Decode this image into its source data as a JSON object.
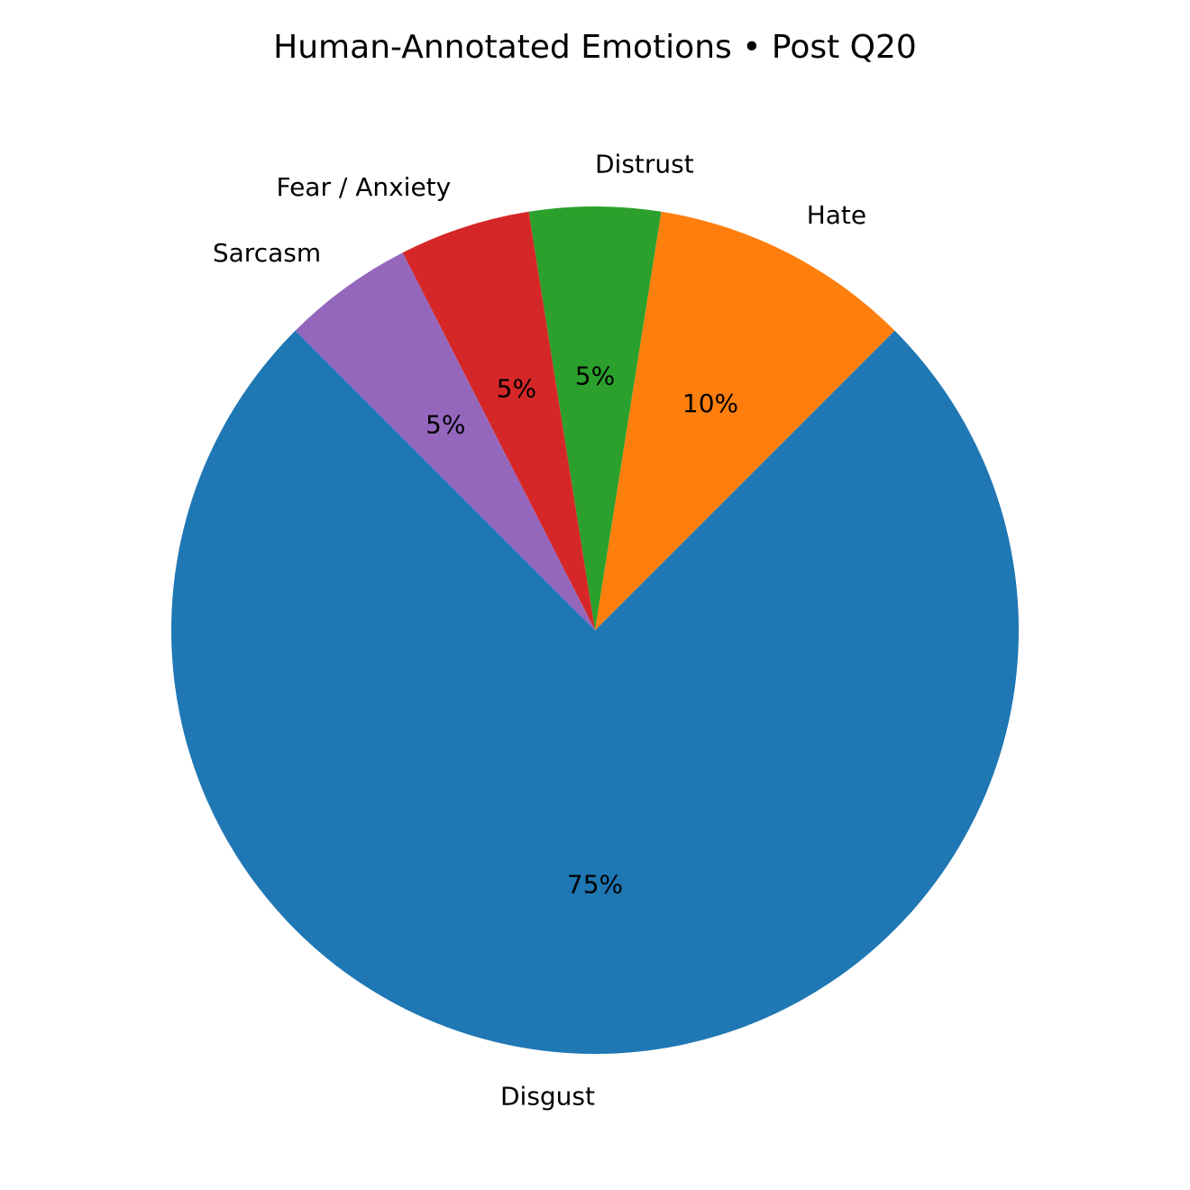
{
  "chart_data": {
    "type": "pie",
    "title": "Human-Annotated Emotions • Post Q20",
    "categories": [
      "Disgust",
      "Hate",
      "Distrust",
      "Fear / Anxiety",
      "Sarcasm"
    ],
    "values": [
      75,
      10,
      5,
      5,
      5
    ],
    "percent_labels": [
      "75%",
      "10%",
      "5%",
      "5%",
      "5%"
    ],
    "colors": [
      "#1f77b4",
      "#ff7f0e",
      "#2ca02c",
      "#d62728",
      "#9467bd"
    ],
    "start_angle_deg": 135,
    "direction": "counterclockwise",
    "legend": "none"
  }
}
